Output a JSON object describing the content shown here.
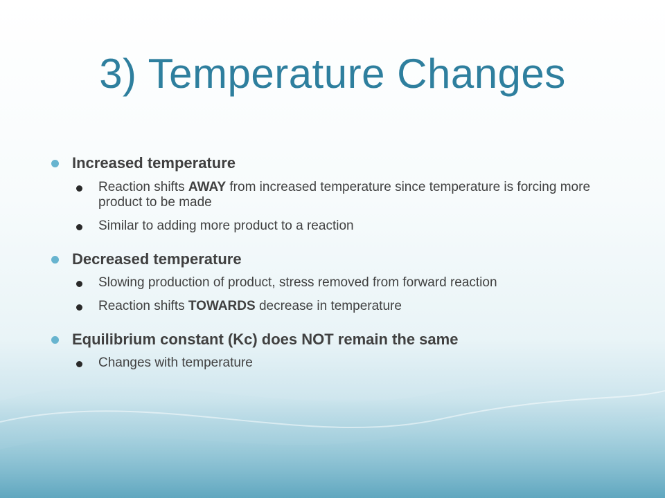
{
  "slide": {
    "title": "3) Temperature Changes",
    "colors": {
      "title": "#2e7f9e",
      "text": "#404040",
      "level1_bullet": "#67b4cf",
      "level2_bullet": "#2a2a2a",
      "background_wave": "#6fb0c6"
    },
    "points": [
      {
        "text": "Increased temperature",
        "subpoints": [
          {
            "before": "Reaction shifts ",
            "bold": "AWAY",
            "after": " from increased temperature since temperature is forcing more product to be made"
          },
          {
            "before": "Similar to adding more product to a reaction",
            "bold": "",
            "after": ""
          }
        ]
      },
      {
        "text": "Decreased temperature",
        "subpoints": [
          {
            "before": "Slowing production of product, stress removed from forward reaction",
            "bold": "",
            "after": ""
          },
          {
            "before": "Reaction shifts ",
            "bold": "TOWARDS",
            "after": " decrease in temperature"
          }
        ]
      },
      {
        "text": "Equilibrium constant (Kc) does NOT remain the same",
        "subpoints": [
          {
            "before": "Changes with temperature",
            "bold": "",
            "after": ""
          }
        ]
      }
    ]
  }
}
